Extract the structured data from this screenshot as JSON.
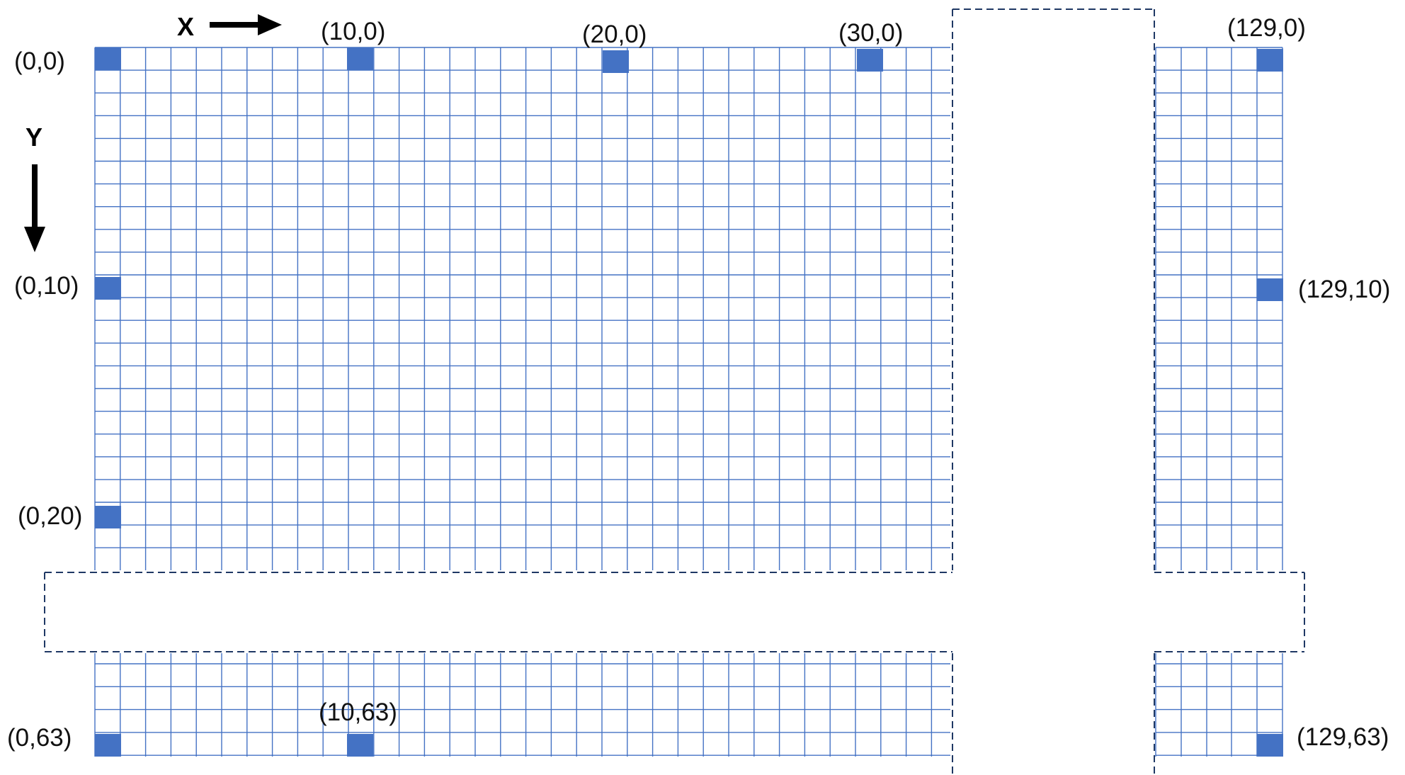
{
  "colors": {
    "grid_line": "#4472c4",
    "marker": "#4472c4",
    "dashed_border": "#1f3864",
    "arrow": "#000000",
    "text": "#111111"
  },
  "axes": {
    "x_label": "X",
    "y_label": "Y"
  },
  "pixel_labels": [
    {
      "text": "(0,0)",
      "x": 0,
      "y": 0
    },
    {
      "text": "(10,0)",
      "x": 10,
      "y": 0
    },
    {
      "text": "(20,0)",
      "x": 20,
      "y": 0
    },
    {
      "text": "(30,0)",
      "x": 30,
      "y": 0
    },
    {
      "text": "(129,0)",
      "x": 129,
      "y": 0
    },
    {
      "text": "(0,10)",
      "x": 0,
      "y": 10
    },
    {
      "text": "(129,10)",
      "x": 129,
      "y": 10
    },
    {
      "text": "(0,20)",
      "x": 0,
      "y": 20
    },
    {
      "text": "(0,63)",
      "x": 0,
      "y": 63
    },
    {
      "text": "(10,63)",
      "x": 10,
      "y": 63
    },
    {
      "text": "(129,63)",
      "x": 129,
      "y": 63
    }
  ]
}
